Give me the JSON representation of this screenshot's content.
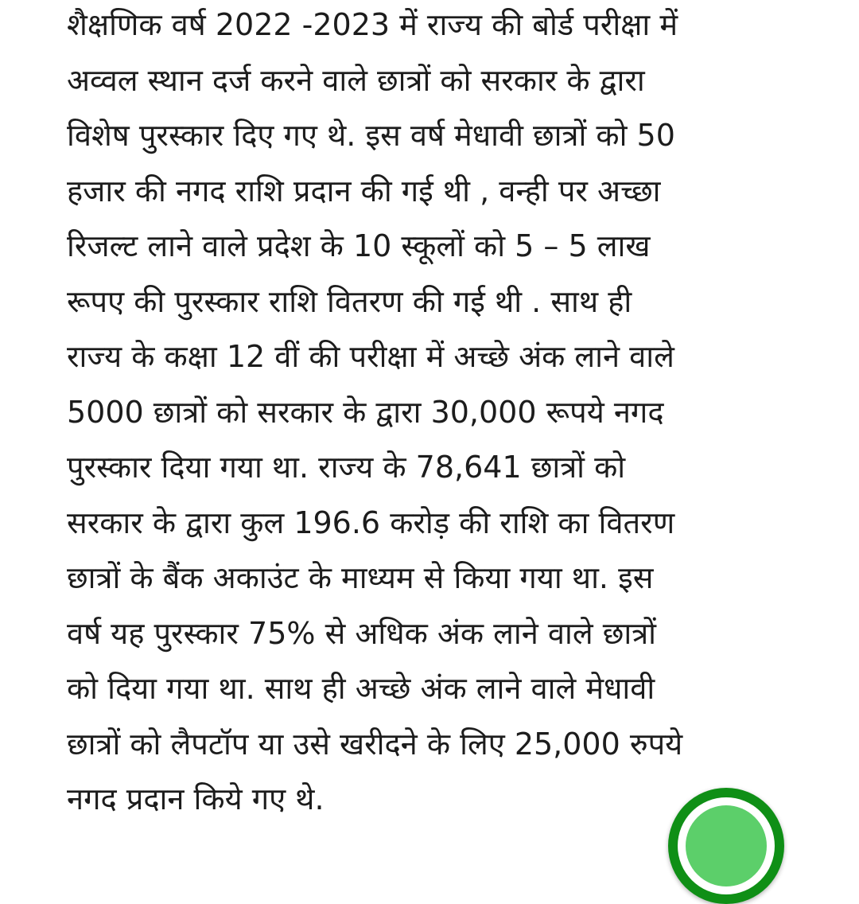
{
  "article": {
    "lines": [
      "शैक्षणिक वर्ष 2022  -2023 में राज्य की बोर्ड परीक्षा में",
      "अव्वल स्थान दर्ज करने वाले छात्रों को सरकार के द्वारा",
      "विशेष पुरस्कार दिए गए थे. इस वर्ष मेधावी छात्रों को 50",
      "हजार की नगद राशि प्रदान की गई थी , वन्ही पर अच्छा",
      "रिजल्ट लाने वाले प्रदेश के 10 स्कूलों को 5 – 5 लाख",
      "रूपए की पुरस्कार राशि वितरण की गई थी . साथ ही",
      "राज्य के कक्षा 12 वीं की परीक्षा में अच्छे अंक लाने वाले",
      "5000 छात्रों को सरकार के द्वारा 30,000 रूपये नगद",
      "पुरस्कार दिया गया था. राज्य के 78,641 छात्रों को",
      "सरकार के द्वारा कुल 196.6 करोड़ की राशि का वितरण",
      "छात्रों के बैंक अकाउंट के माध्यम से किया गया था. इस",
      "वर्ष यह पुरस्कार 75% से अधिक अंक लाने वाले छात्रों",
      "को दिया गया था.  साथ ही अच्छे अंक लाने वाले मेधावी",
      "छात्रों को लैपटॉप या उसे खरीदने के लिए 25,000 रुपये",
      "नगद प्रदान किये गए थे."
    ]
  },
  "fab": {
    "icon": "green-circle-button-icon",
    "ring_color": "#0f8f16",
    "fill_color": "#5ccf6a"
  }
}
